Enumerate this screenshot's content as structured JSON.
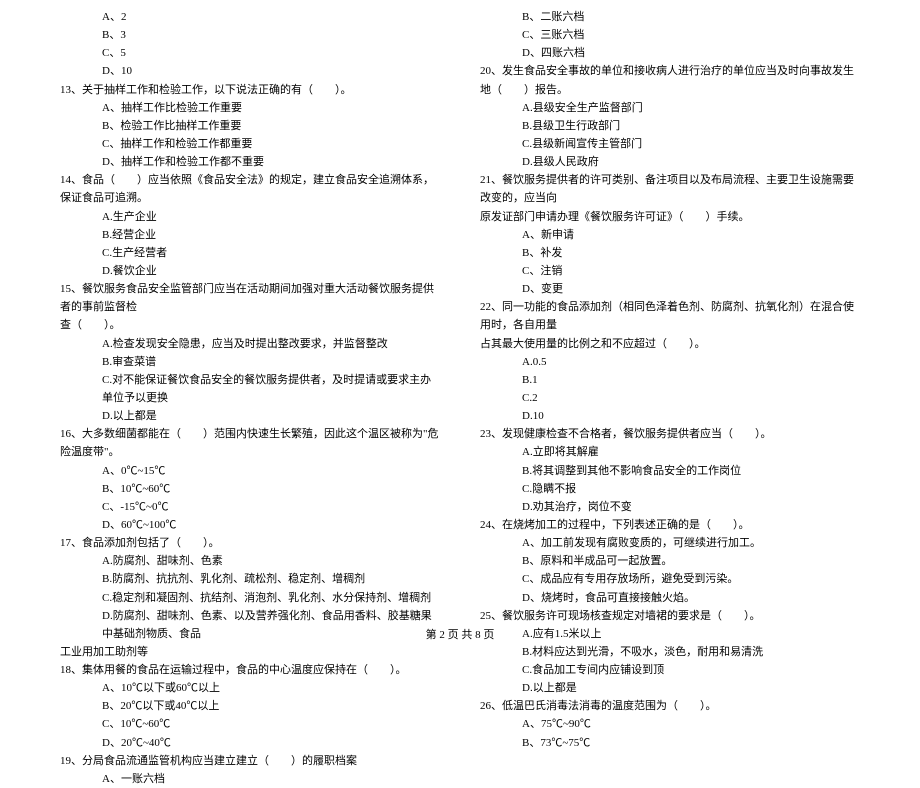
{
  "left": {
    "opts12": [
      "A、2",
      "B、3",
      "C、5",
      "D、10"
    ],
    "q13": "13、关于抽样工作和检验工作，以下说法正确的有（　　）。",
    "opts13": [
      "A、抽样工作比检验工作重要",
      "B、检验工作比抽样工作重要",
      "C、抽样工作和检验工作都重要",
      "D、抽样工作和检验工作都不重要"
    ],
    "q14": "14、食品（　　）应当依照《食品安全法》的规定，建立食品安全追溯体系，保证食品可追溯。",
    "opts14": [
      "A.生产企业",
      "B.经营企业",
      "C.生产经营者",
      "D.餐饮企业"
    ],
    "q15": "15、餐饮服务食品安全监管部门应当在活动期间加强对重大活动餐饮服务提供者的事前监督检",
    "q15b": "查（　　）。",
    "opts15": [
      "A.检查发现安全隐患，应当及时提出整改要求，并监督整改",
      "B.审查菜谱",
      "C.对不能保证餐饮食品安全的餐饮服务提供者，及时提请或要求主办单位予以更换",
      "D.以上都是"
    ],
    "q16": "16、大多数细菌都能在（　　）范围内快速生长繁殖，因此这个温区被称为\"危险温度带\"。",
    "opts16": [
      "A、0℃~15℃",
      "B、10℃~60℃",
      "C、-15℃~0℃",
      "D、60℃~100℃"
    ],
    "q17": "17、食品添加剂包括了（　　）。",
    "opts17": [
      "A.防腐剂、甜味剂、色素",
      "B.防腐剂、抗抗剂、乳化剂、疏松剂、稳定剂、增稠剂",
      "C.稳定剂和凝固剂、抗结剂、消泡剂、乳化剂、水分保持剂、增稠剂",
      "D.防腐剂、甜味剂、色素、以及营养强化剂、食品用香料、胶基糖果中基础剂物质、食品"
    ],
    "q17b": "工业用加工助剂等",
    "q18": "18、集体用餐的食品在运输过程中，食品的中心温度应保持在（　　）。",
    "opts18": [
      "A、10℃以下或60℃以上",
      "B、20℃以下或40℃以上",
      "C、10℃~60℃",
      "D、20℃~40℃"
    ],
    "q19": "19、分局食品流通监管机构应当建立建立（　　）的履职档案",
    "opts19": [
      "A、一账六档"
    ]
  },
  "right": {
    "opts19b": [
      "B、二账六档",
      "C、三账六档",
      "D、四账六档"
    ],
    "q20": "20、发生食品安全事故的单位和接收病人进行治疗的单位应当及时向事故发生地（　　）报告。",
    "opts20": [
      "A.县级安全生产监督部门",
      "B.县级卫生行政部门",
      "C.县级新闻宣传主管部门",
      "D.县级人民政府"
    ],
    "q21": "21、餐饮服务提供者的许可类别、备注项目以及布局流程、主要卫生设施需要改变的，应当向",
    "q21b": "原发证部门申请办理《餐饮服务许可证》（　　）手续。",
    "opts21": [
      "A、新申请",
      "B、补发",
      "C、注销",
      "D、变更"
    ],
    "q22": "22、同一功能的食品添加剂（相同色泽着色剂、防腐剂、抗氧化剂）在混合使用时，各自用量",
    "q22b": "占其最大使用量的比例之和不应超过（　　）。",
    "opts22": [
      "A.0.5",
      "B.1",
      "C.2",
      "D.10"
    ],
    "q23": "23、发现健康检查不合格者，餐饮服务提供者应当（　　）。",
    "opts23": [
      "A.立即将其解雇",
      "B.将其调整到其他不影响食品安全的工作岗位",
      "C.隐瞒不报",
      "D.劝其治疗，岗位不变"
    ],
    "q24": "24、在烧烤加工的过程中，下列表述正确的是（　　）。",
    "opts24": [
      "A、加工前发现有腐败变质的，可继续进行加工。",
      "B、原料和半成品可一起放置。",
      "C、成品应有专用存放场所，避免受到污染。",
      "D、烧烤时，食品可直接接触火焰。"
    ],
    "q25": "25、餐饮服务许可现场核查规定对墙裙的要求是（　　）。",
    "opts25": [
      "A.应有1.5米以上",
      "B.材料应达到光滑，不吸水，淡色，耐用和易清洗",
      "C.食品加工专间内应铺设到顶",
      "D.以上都是"
    ],
    "q26": "26、低温巴氏消毒法消毒的温度范围为（　　）。",
    "opts26": [
      "A、75℃~90℃",
      "B、73℃~75℃"
    ]
  },
  "footer": "第 2 页 共 8 页"
}
